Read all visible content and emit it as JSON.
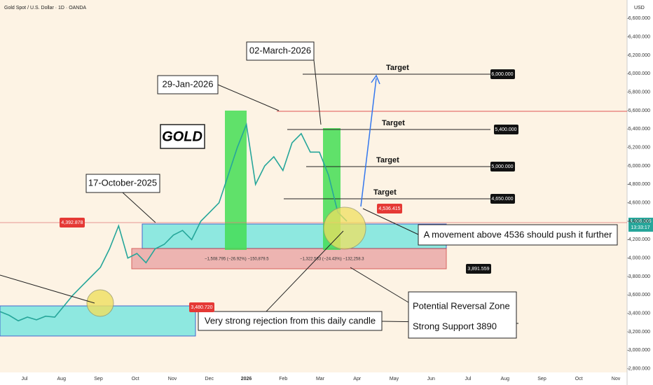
{
  "header": {
    "title": "Gold Spot / U.S. Dollar · 1D · OANDA",
    "currency": "USD"
  },
  "chart_data": {
    "type": "line",
    "ylim": [
      2760,
      6800
    ],
    "yticks": [
      {
        "value": 6600,
        "label": "6,600.000"
      },
      {
        "value": 6400,
        "label": "6,400.000"
      },
      {
        "value": 6200,
        "label": "6,200.000"
      },
      {
        "value": 6000,
        "label": "6,000.000"
      },
      {
        "value": 5800,
        "label": "5,800.000"
      },
      {
        "value": 5600,
        "label": "5,600.000"
      },
      {
        "value": 5400,
        "label": "5,400.000"
      },
      {
        "value": 5200,
        "label": "5,200.000"
      },
      {
        "value": 5000,
        "label": "5,000.000"
      },
      {
        "value": 4800,
        "label": "4,800.000"
      },
      {
        "value": 4600,
        "label": "4,600.000"
      },
      {
        "value": 4400,
        "label": "4,400.000"
      },
      {
        "value": 4200,
        "label": "4,200.000"
      },
      {
        "value": 4000,
        "label": "4,000.000"
      },
      {
        "value": 3800,
        "label": "3,800.000"
      },
      {
        "value": 3600,
        "label": "3,600.000"
      },
      {
        "value": 3400,
        "label": "3,400.000"
      },
      {
        "value": 3200,
        "label": "3,200.000"
      },
      {
        "value": 3000,
        "label": "3,000.000"
      },
      {
        "value": 2800,
        "label": "2,800.000"
      }
    ],
    "series": [
      {
        "name": "Gold",
        "color": "#26a69a",
        "values": [
          3420,
          3380,
          3320,
          3360,
          3330,
          3370,
          3360,
          3480,
          3600,
          3700,
          3800,
          3900,
          4100,
          4350,
          4000,
          4050,
          3950,
          4100,
          4150,
          4250,
          4300,
          4200,
          4400,
          4500,
          4600,
          4900,
          5200,
          5450,
          4800,
          5000,
          5100,
          4950,
          5250,
          5350,
          5150,
          5150,
          4900,
          4500,
          4400
        ]
      }
    ]
  },
  "time_axis": [
    "Jul",
    "Aug",
    "Sep",
    "Oct",
    "Nov",
    "Dec",
    "2026",
    "Feb",
    "Mar",
    "Apr",
    "May",
    "Jun",
    "Jul",
    "Aug",
    "Sep",
    "Oct",
    "Nov"
  ],
  "price_labels": {
    "current": "4,408.385",
    "countdown": "13:33:17",
    "level_a": "4,392.878",
    "level_b": "3,480.720",
    "level_c": "3,891.559",
    "level_d": "4,536.415"
  },
  "targets": [
    {
      "label": "Target",
      "price": "6,000.000"
    },
    {
      "label": "Target",
      "price": "5,400.000"
    },
    {
      "label": "Target",
      "price": "5,000.000"
    },
    {
      "label": "Target",
      "price": "4,650.000"
    }
  ],
  "annotations": {
    "title": "GOLD",
    "date_march": "02-March-2026",
    "date_jan": "29-Jan-2026",
    "date_oct": "17-October-2025",
    "movement": "A movement above 4536 should push it further",
    "rejection": "Very strong rejection from this daily candle",
    "zone": "Potential Reversal Zone",
    "support": "Strong Support 3890",
    "measure_1": "−1,508.795 (−26.92%) −150,879.5",
    "measure_2": "−1,322.583 (−24.43%) −132,258.3"
  }
}
